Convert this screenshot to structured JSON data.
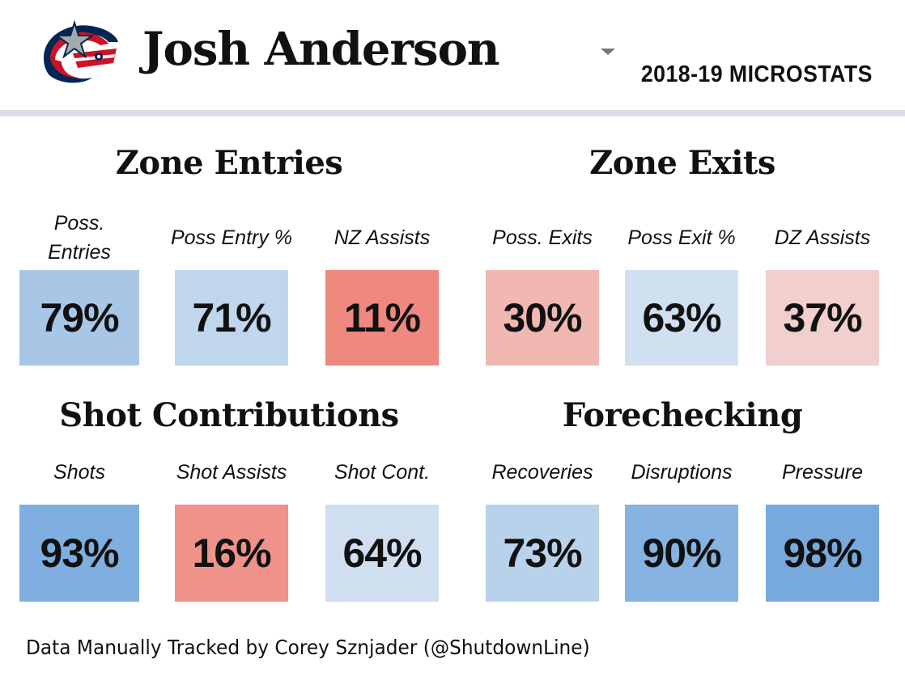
{
  "header": {
    "team_logo_icon": "blue-jackets-logo-icon",
    "player_name": "Josh Anderson",
    "season_label": "2018-19 MICROSTATS",
    "dropdown_icon": "caret-down-icon"
  },
  "sections": {
    "zone_entries": {
      "title": "Zone Entries",
      "metrics": [
        {
          "label": "Poss.\nEntries",
          "value": "79%",
          "color": "#a8c7e7"
        },
        {
          "label": "Poss Entry %",
          "value": "71%",
          "color": "#bfd6ec"
        },
        {
          "label": "NZ Assists",
          "value": "11%",
          "color": "#ef887e"
        }
      ]
    },
    "zone_exits": {
      "title": "Zone Exits",
      "metrics": [
        {
          "label": "Poss. Exits",
          "value": "30%",
          "color": "#f0b8b1"
        },
        {
          "label": "Poss Exit %",
          "value": "63%",
          "color": "#d1e0f0"
        },
        {
          "label": "DZ Assists",
          "value": "37%",
          "color": "#f1cfcd"
        }
      ]
    },
    "shot_contributions": {
      "title": "Shot Contributions",
      "metrics": [
        {
          "label": "Shots",
          "value": "93%",
          "color": "#7fafe0"
        },
        {
          "label": "Shot Assists",
          "value": "16%",
          "color": "#ef938a"
        },
        {
          "label": "Shot Cont.",
          "value": "64%",
          "color": "#d0dff0"
        }
      ]
    },
    "forechecking": {
      "title": "Forechecking",
      "metrics": [
        {
          "label": "Recoveries",
          "value": "73%",
          "color": "#b8d2ec"
        },
        {
          "label": "Disruptions",
          "value": "90%",
          "color": "#86b3e1"
        },
        {
          "label": "Pressure",
          "value": "98%",
          "color": "#78a9dc"
        }
      ]
    }
  },
  "footer": {
    "credit": "Data Manually Tracked by Corey Sznjader (@ShutdownLine)"
  }
}
